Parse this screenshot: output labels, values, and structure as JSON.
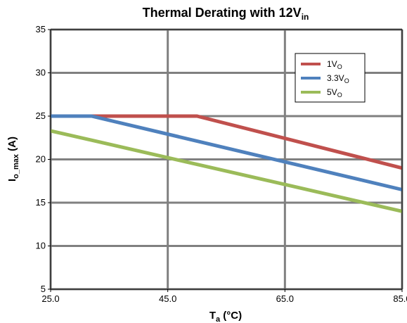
{
  "chart_data": {
    "type": "line",
    "title": {
      "main": "Thermal Derating with 12V",
      "sub": "in"
    },
    "xlabel": {
      "main": "T",
      "sub": "a",
      "rest": " (°C)"
    },
    "ylabel": {
      "main": "I",
      "sub": "o_max",
      "rest": " (A)"
    },
    "xlim": [
      25,
      85
    ],
    "ylim": [
      5,
      35
    ],
    "x_ticks": [
      25,
      45,
      65,
      85
    ],
    "x_tick_labels": [
      "25.0",
      "45.0",
      "65.0",
      "85.0"
    ],
    "y_ticks": [
      5,
      10,
      15,
      20,
      25,
      30,
      35
    ],
    "y_tick_labels": [
      "5",
      "10",
      "15",
      "20",
      "25",
      "30",
      "35"
    ],
    "grid": true,
    "legend_position": "top-right",
    "series": [
      {
        "name": "1V",
        "name_sub": "O",
        "color": "#C0504D",
        "x": [
          25,
          50,
          85
        ],
        "y": [
          25,
          25,
          19
        ]
      },
      {
        "name": "3.3V",
        "name_sub": "O",
        "color": "#4F81BD",
        "x": [
          25,
          32,
          85
        ],
        "y": [
          25,
          25,
          16.5
        ]
      },
      {
        "name": "5V",
        "name_sub": "O",
        "color": "#9BBB59",
        "x": [
          25,
          85
        ],
        "y": [
          23.3,
          14
        ]
      }
    ]
  }
}
